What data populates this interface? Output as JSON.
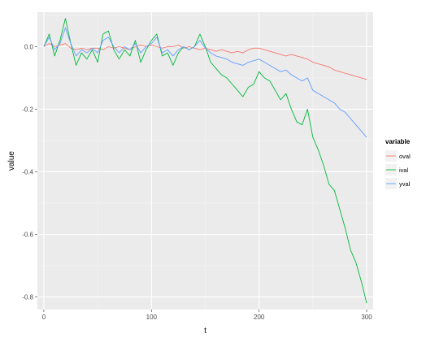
{
  "chart_data": {
    "type": "line",
    "title": "",
    "xlabel": "t",
    "ylabel": "value",
    "xlim": [
      -6,
      306
    ],
    "ylim": [
      -0.84,
      0.11
    ],
    "x_ticks": [
      0,
      100,
      200,
      300
    ],
    "x_tick_labels": [
      "0",
      "100",
      "200",
      "300"
    ],
    "y_ticks": [
      0.0,
      -0.2,
      -0.4,
      -0.6,
      -0.8
    ],
    "y_tick_labels": [
      "0.0",
      "-0.2",
      "-0.4",
      "-0.6",
      "-0.8"
    ],
    "grid": true,
    "legend": {
      "title": "variable",
      "position": "right"
    },
    "series": [
      {
        "name": "oval",
        "color": "#F8766D",
        "x": [
          0,
          5,
          10,
          15,
          20,
          25,
          30,
          35,
          40,
          45,
          50,
          55,
          60,
          65,
          70,
          75,
          80,
          85,
          90,
          95,
          100,
          105,
          110,
          115,
          120,
          125,
          130,
          135,
          140,
          145,
          150,
          155,
          160,
          165,
          170,
          175,
          180,
          185,
          190,
          195,
          200,
          205,
          210,
          215,
          220,
          225,
          230,
          235,
          240,
          245,
          250,
          255,
          260,
          265,
          270,
          275,
          280,
          285,
          290,
          295,
          300
        ],
        "values": [
          0.0,
          0.01,
          0.0,
          0.005,
          0.01,
          -0.005,
          -0.01,
          -0.005,
          -0.01,
          -0.005,
          -0.005,
          -0.01,
          0.0,
          -0.005,
          0.0,
          -0.005,
          -0.01,
          0.0,
          0.005,
          0.0,
          0.005,
          0.0,
          -0.005,
          0.0,
          0.0,
          0.005,
          -0.005,
          0.0,
          -0.005,
          -0.01,
          -0.005,
          -0.01,
          -0.015,
          -0.01,
          -0.015,
          -0.02,
          -0.015,
          -0.02,
          -0.01,
          -0.005,
          -0.005,
          -0.01,
          -0.015,
          -0.02,
          -0.025,
          -0.03,
          -0.025,
          -0.03,
          -0.035,
          -0.04,
          -0.05,
          -0.055,
          -0.06,
          -0.065,
          -0.075,
          -0.08,
          -0.085,
          -0.09,
          -0.095,
          -0.1,
          -0.105
        ]
      },
      {
        "name": "ival",
        "color": "#00BA38",
        "x": [
          0,
          5,
          10,
          15,
          20,
          25,
          30,
          35,
          40,
          45,
          50,
          55,
          60,
          65,
          70,
          75,
          80,
          85,
          90,
          95,
          100,
          105,
          110,
          115,
          120,
          125,
          130,
          135,
          140,
          145,
          150,
          155,
          160,
          165,
          170,
          175,
          180,
          185,
          190,
          195,
          200,
          205,
          210,
          215,
          220,
          225,
          230,
          235,
          240,
          245,
          250,
          255,
          260,
          265,
          270,
          275,
          280,
          285,
          290,
          295,
          300
        ],
        "values": [
          0.0,
          0.04,
          -0.03,
          0.02,
          0.09,
          0.01,
          -0.06,
          -0.02,
          -0.04,
          -0.01,
          -0.05,
          0.04,
          0.05,
          -0.01,
          -0.04,
          -0.01,
          -0.03,
          0.02,
          -0.05,
          -0.01,
          0.02,
          0.04,
          -0.03,
          -0.02,
          -0.06,
          -0.02,
          0.0,
          -0.01,
          0.0,
          0.04,
          0.0,
          -0.05,
          -0.07,
          -0.09,
          -0.1,
          -0.12,
          -0.14,
          -0.16,
          -0.13,
          -0.12,
          -0.08,
          -0.1,
          -0.11,
          -0.14,
          -0.17,
          -0.15,
          -0.2,
          -0.24,
          -0.25,
          -0.2,
          -0.29,
          -0.33,
          -0.38,
          -0.44,
          -0.46,
          -0.52,
          -0.58,
          -0.65,
          -0.69,
          -0.75,
          -0.82
        ]
      },
      {
        "name": "yval",
        "color": "#619CFF",
        "x": [
          0,
          5,
          10,
          15,
          20,
          25,
          30,
          35,
          40,
          45,
          50,
          55,
          60,
          65,
          70,
          75,
          80,
          85,
          90,
          95,
          100,
          105,
          110,
          115,
          120,
          125,
          130,
          135,
          140,
          145,
          150,
          155,
          160,
          165,
          170,
          175,
          180,
          185,
          190,
          195,
          200,
          205,
          210,
          215,
          220,
          225,
          230,
          235,
          240,
          245,
          250,
          255,
          260,
          265,
          270,
          275,
          280,
          285,
          290,
          295,
          300
        ],
        "values": [
          0.0,
          0.03,
          -0.01,
          0.01,
          0.06,
          0.01,
          -0.03,
          -0.01,
          -0.02,
          -0.005,
          -0.02,
          0.02,
          0.03,
          0.0,
          -0.02,
          0.0,
          -0.01,
          0.01,
          -0.02,
          0.0,
          0.01,
          0.03,
          -0.02,
          -0.01,
          -0.03,
          -0.01,
          0.0,
          -0.01,
          0.0,
          0.02,
          -0.005,
          -0.02,
          -0.03,
          -0.035,
          -0.04,
          -0.05,
          -0.055,
          -0.06,
          -0.05,
          -0.045,
          -0.04,
          -0.05,
          -0.06,
          -0.07,
          -0.08,
          -0.075,
          -0.09,
          -0.1,
          -0.11,
          -0.1,
          -0.14,
          -0.15,
          -0.16,
          -0.17,
          -0.18,
          -0.2,
          -0.21,
          -0.23,
          -0.25,
          -0.27,
          -0.29
        ]
      }
    ]
  }
}
